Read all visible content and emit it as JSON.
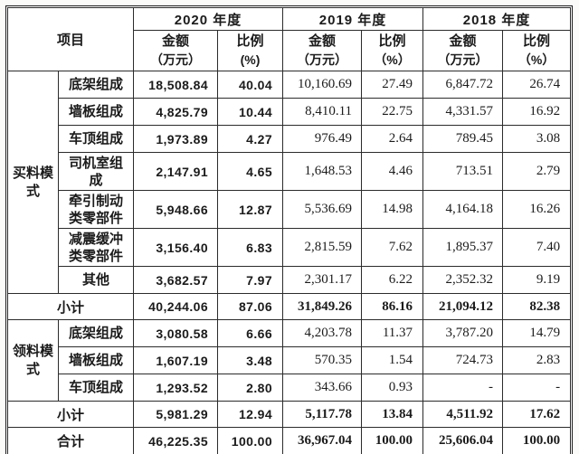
{
  "page": {
    "background": "#fbfbfa",
    "text_color": "#1b1b1b",
    "border_color": "#2b2b2b"
  },
  "table": {
    "item_header": "项目",
    "year_groups": [
      {
        "label": "2020 年度",
        "amount": [
          "金额",
          "（万元）"
        ],
        "ratio": [
          "比例",
          "(%)"
        ]
      },
      {
        "label": "2019 年度",
        "amount": [
          "金额",
          "（万元）"
        ],
        "ratio": [
          "比例",
          "（%）"
        ]
      },
      {
        "label": "2018 年度",
        "amount": [
          "金额",
          "（万元）"
        ],
        "ratio": [
          "比例",
          "（%）"
        ]
      }
    ],
    "groups": [
      {
        "label": "买料模式",
        "rows": [
          {
            "label": "底架组成",
            "tall": false,
            "values": [
              "18,508.84",
              "40.04",
              "10,160.69",
              "27.49",
              "6,847.72",
              "26.74"
            ]
          },
          {
            "label": "墙板组成",
            "tall": false,
            "values": [
              "4,825.79",
              "10.44",
              "8,410.11",
              "22.75",
              "4,331.57",
              "16.92"
            ]
          },
          {
            "label": "车顶组成",
            "tall": false,
            "values": [
              "1,973.89",
              "4.27",
              "976.49",
              "2.64",
              "789.45",
              "3.08"
            ]
          },
          {
            "label": "司机室组成",
            "tall": true,
            "values": [
              "2,147.91",
              "4.65",
              "1,648.53",
              "4.46",
              "713.51",
              "2.79"
            ]
          },
          {
            "label": "牵引制动类零部件",
            "tall": true,
            "values": [
              "5,948.66",
              "12.87",
              "5,536.69",
              "14.98",
              "4,164.18",
              "16.26"
            ]
          },
          {
            "label": "减震缓冲类零部件",
            "tall": true,
            "values": [
              "3,156.40",
              "6.83",
              "2,815.59",
              "7.62",
              "1,895.37",
              "7.40"
            ]
          },
          {
            "label": "其他",
            "tall": false,
            "values": [
              "3,682.57",
              "7.97",
              "2,301.17",
              "6.22",
              "2,352.32",
              "9.19"
            ]
          }
        ],
        "subtotal": {
          "label": "小计",
          "values": [
            "40,244.06",
            "87.06",
            "31,849.26",
            "86.16",
            "21,094.12",
            "82.38"
          ]
        }
      },
      {
        "label": "领料模式",
        "rows": [
          {
            "label": "底架组成",
            "tall": false,
            "values": [
              "3,080.58",
              "6.66",
              "4,203.78",
              "11.37",
              "3,787.20",
              "14.79"
            ]
          },
          {
            "label": "墙板组成",
            "tall": false,
            "values": [
              "1,607.19",
              "3.48",
              "570.35",
              "1.54",
              "724.73",
              "2.83"
            ]
          },
          {
            "label": "车顶组成",
            "tall": false,
            "values": [
              "1,293.52",
              "2.80",
              "343.66",
              "0.93",
              "-",
              "-"
            ]
          }
        ],
        "subtotal": {
          "label": "小计",
          "values": [
            "5,981.29",
            "12.94",
            "5,117.78",
            "13.84",
            "4,511.92",
            "17.62"
          ]
        }
      }
    ],
    "total": {
      "label": "合计",
      "values": [
        "46,225.35",
        "100.00",
        "36,967.04",
        "100.00",
        "25,606.04",
        "100.00"
      ]
    }
  }
}
